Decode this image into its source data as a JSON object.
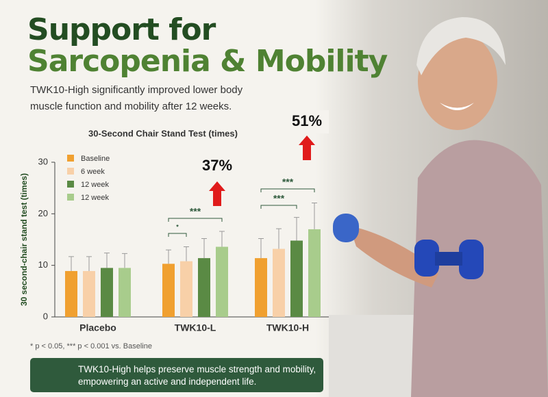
{
  "header": {
    "title_line1": "Support for",
    "title_line2": "Sarcopenia & Mobility",
    "subtitle": "TWK10-High significantly improved lower body muscle function and mobility after 12 weeks."
  },
  "chart_data": {
    "type": "bar",
    "title": "30-Second Chair Stand Test (times)",
    "y_label": "30 second-chair stand test (times)",
    "categories": [
      "Placebo",
      "TWK10-L",
      "TWK10-H"
    ],
    "series": [
      {
        "name": "Baseline",
        "color": "#f0a030",
        "values": [
          8.9,
          10.3,
          11.4
        ],
        "errors": [
          2.8,
          2.7,
          3.8
        ]
      },
      {
        "name": "6 week",
        "color": "#f8d0a8",
        "values": [
          8.9,
          10.8,
          13.2
        ],
        "errors": [
          2.8,
          2.8,
          3.9
        ]
      },
      {
        "name": "12 week",
        "color": "#5a8a44",
        "values": [
          9.5,
          11.4,
          14.8
        ],
        "errors": [
          2.9,
          3.8,
          4.5
        ]
      },
      {
        "name": "12 week",
        "color": "#a8cc8c",
        "values": [
          9.5,
          13.6,
          17.0
        ],
        "errors": [
          2.8,
          3.0,
          5.1
        ]
      }
    ],
    "ylim": [
      0,
      30
    ],
    "yticks": [
      0,
      10,
      20,
      30
    ],
    "grid": false,
    "significance": [
      "*",
      "***",
      "***",
      "***"
    ],
    "increase_labels": [
      "37%",
      "51%"
    ]
  },
  "footnote": "* p < 0.05, *** p < 0.001 vs. Baseline",
  "callout": "TWK10-High helps preserve muscle strength and mobility, empowering an active and independent life."
}
